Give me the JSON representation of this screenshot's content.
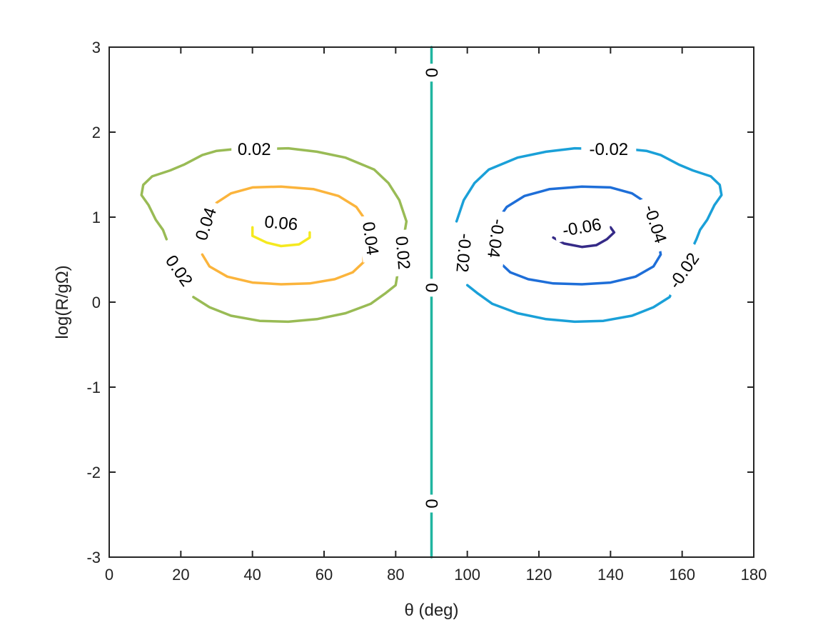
{
  "chart_data": {
    "type": "contour",
    "xlabel": "θ (deg)",
    "ylabel": "log(R/gΩ)",
    "xlim": [
      0,
      180
    ],
    "ylim": [
      -3,
      3
    ],
    "xticks": [
      0,
      20,
      40,
      60,
      80,
      100,
      120,
      140,
      160,
      180
    ],
    "yticks": [
      -3,
      -2,
      -1,
      0,
      1,
      2,
      3
    ],
    "grid": false,
    "box": true,
    "levels": [
      {
        "level": 0.06,
        "label": "0.06",
        "color": "#f5e91f",
        "points": [
          [
            40,
            0.88
          ],
          [
            40,
            0.78
          ],
          [
            44,
            0.7
          ],
          [
            48,
            0.66
          ],
          [
            53,
            0.68
          ],
          [
            56,
            0.76
          ],
          [
            56,
            0.82
          ]
        ],
        "labels": [
          {
            "text": "0.06",
            "x": 48,
            "y": 0.93,
            "angle": 5
          }
        ]
      },
      {
        "level": 0.04,
        "label": "0.04",
        "color": "#fbb43c",
        "points": [
          [
            26,
            0.56
          ],
          [
            28,
            0.42
          ],
          [
            33,
            0.3
          ],
          [
            40,
            0.23
          ],
          [
            48,
            0.21
          ],
          [
            56,
            0.22
          ],
          [
            63,
            0.27
          ],
          [
            68,
            0.35
          ],
          [
            71,
            0.47
          ],
          [
            71,
            1.0
          ],
          [
            69,
            1.12
          ],
          [
            64,
            1.25
          ],
          [
            57,
            1.33
          ],
          [
            48,
            1.36
          ],
          [
            40,
            1.35
          ],
          [
            34,
            1.28
          ],
          [
            30,
            1.17
          ],
          [
            28,
            1.05
          ]
        ],
        "labels": [
          {
            "text": "0.04",
            "x": 27,
            "y": 0.92,
            "angle": -72
          },
          {
            "text": "0.04",
            "x": 73,
            "y": 0.75,
            "angle": 82
          }
        ]
      },
      {
        "level": 0.02,
        "label": "0.02",
        "color": "#99bb55",
        "points": [
          [
            23.5,
            0.06
          ],
          [
            28,
            -0.06
          ],
          [
            34,
            -0.16
          ],
          [
            42,
            -0.22
          ],
          [
            50,
            -0.23
          ],
          [
            58,
            -0.2
          ],
          [
            66,
            -0.13
          ],
          [
            73,
            -0.02
          ],
          [
            77,
            0.1
          ],
          [
            80,
            0.2
          ],
          [
            83,
            0.95
          ],
          [
            81,
            1.2
          ],
          [
            78,
            1.4
          ],
          [
            74,
            1.56
          ],
          [
            66,
            1.7
          ],
          [
            58,
            1.77
          ],
          [
            50,
            1.81
          ],
          [
            42,
            1.8
          ],
          [
            35,
            1.8
          ],
          [
            30,
            1.78
          ],
          [
            26,
            1.73
          ],
          [
            21,
            1.62
          ],
          [
            17,
            1.55
          ],
          [
            12,
            1.48
          ],
          [
            9.5,
            1.38
          ],
          [
            9,
            1.26
          ],
          [
            11,
            1.14
          ],
          [
            13,
            0.97
          ],
          [
            15,
            0.85
          ],
          [
            16,
            0.74
          ]
        ],
        "labels": [
          {
            "text": "0.02",
            "x": 40.5,
            "y": 1.8,
            "angle": 0
          },
          {
            "text": "0.02",
            "x": 19.5,
            "y": 0.37,
            "angle": 55
          },
          {
            "text": "0.02",
            "x": 82,
            "y": 0.58,
            "angle": 85
          }
        ]
      },
      {
        "level": 0,
        "label": "0",
        "color": "#20b5a0",
        "points": [
          [
            90,
            -3
          ],
          [
            90,
            3
          ]
        ],
        "labels": [
          {
            "text": "0",
            "x": 90,
            "y": 2.7,
            "angle": 90
          },
          {
            "text": "0",
            "x": 90,
            "y": 0.17,
            "angle": 90
          },
          {
            "text": "0",
            "x": 90,
            "y": -2.37,
            "angle": 90
          }
        ]
      },
      {
        "level": -0.02,
        "label": "-0.02",
        "color": "#1aa0d8",
        "points": [
          [
            97,
            0.95
          ],
          [
            99,
            1.2
          ],
          [
            102,
            1.4
          ],
          [
            106,
            1.56
          ],
          [
            114,
            1.7
          ],
          [
            122,
            1.77
          ],
          [
            130,
            1.81
          ],
          [
            138,
            1.8
          ],
          [
            145,
            1.8
          ],
          [
            150,
            1.78
          ],
          [
            154,
            1.73
          ],
          [
            159,
            1.62
          ],
          [
            163,
            1.55
          ],
          [
            168,
            1.48
          ],
          [
            170.5,
            1.38
          ],
          [
            171,
            1.26
          ],
          [
            169,
            1.14
          ],
          [
            167,
            0.97
          ],
          [
            165,
            0.85
          ],
          [
            164,
            0.74
          ],
          [
            156.5,
            0.06
          ],
          [
            152,
            -0.06
          ],
          [
            146,
            -0.16
          ],
          [
            138,
            -0.22
          ],
          [
            130,
            -0.23
          ],
          [
            122,
            -0.2
          ],
          [
            114,
            -0.13
          ],
          [
            107,
            -0.02
          ],
          [
            103,
            0.1
          ],
          [
            100,
            0.2
          ]
        ],
        "labels": [
          {
            "text": "-0.02",
            "x": 139.5,
            "y": 1.8,
            "angle": 0
          },
          {
            "text": "-0.02",
            "x": 99,
            "y": 0.58,
            "angle": 95
          },
          {
            "text": "-0.02",
            "x": 160.5,
            "y": 0.37,
            "angle": -55
          }
        ]
      },
      {
        "level": -0.04,
        "label": "-0.04",
        "color": "#1e6ed8",
        "points": [
          [
            109,
            1.0
          ],
          [
            111,
            1.12
          ],
          [
            116,
            1.25
          ],
          [
            123,
            1.33
          ],
          [
            132,
            1.36
          ],
          [
            140,
            1.35
          ],
          [
            146,
            1.28
          ],
          [
            150,
            1.17
          ],
          [
            152,
            1.05
          ],
          [
            154,
            0.56
          ],
          [
            152,
            0.42
          ],
          [
            147,
            0.3
          ],
          [
            140,
            0.23
          ],
          [
            132,
            0.21
          ],
          [
            124,
            0.22
          ],
          [
            117,
            0.27
          ],
          [
            112,
            0.35
          ],
          [
            109,
            0.47
          ]
        ],
        "labels": [
          {
            "text": "-0.04",
            "x": 108,
            "y": 0.75,
            "angle": 98
          },
          {
            "text": "-0.04",
            "x": 152.5,
            "y": 0.92,
            "angle": 72
          }
        ]
      },
      {
        "level": -0.06,
        "label": "-0.06",
        "color": "#352a87",
        "points": [
          [
            124,
            0.76
          ],
          [
            127,
            0.69
          ],
          [
            132,
            0.65
          ],
          [
            136,
            0.67
          ],
          [
            139,
            0.74
          ],
          [
            141,
            0.82
          ],
          [
            140,
            0.88
          ]
        ],
        "labels": [
          {
            "text": "-0.06",
            "x": 132,
            "y": 0.88,
            "angle": -10
          }
        ]
      }
    ]
  }
}
